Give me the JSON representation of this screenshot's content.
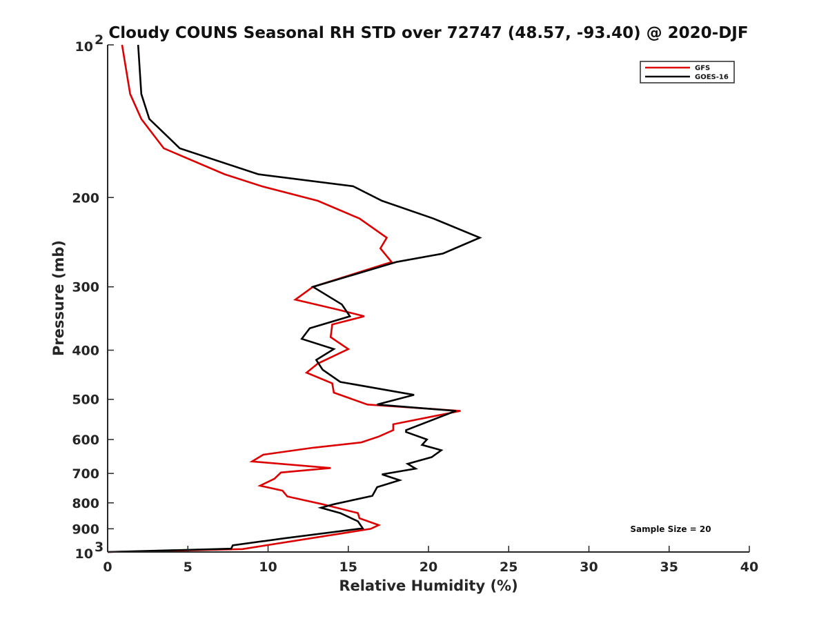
{
  "chart_data": {
    "type": "line",
    "title": "Cloudy COUNS Seasonal RH STD over 72747 (48.57, -93.40) @ 2020-DJF",
    "xlabel": "Relative Humidity (%)",
    "ylabel": "Pressure (mb)",
    "xlim": [
      0,
      40
    ],
    "ylim": [
      100,
      1000
    ],
    "yscale": "log",
    "yreversed": true,
    "x_ticks": [
      0,
      5,
      10,
      15,
      20,
      25,
      30,
      35,
      40
    ],
    "x_tick_labels": [
      "0",
      "5",
      "10",
      "15",
      "20",
      "25",
      "30",
      "35",
      "40"
    ],
    "y_ticks": [
      100,
      200,
      300,
      400,
      500,
      600,
      700,
      800,
      900,
      1000
    ],
    "y_tick_labels": [
      "",
      "200",
      "300",
      "400",
      "500",
      "600",
      "700",
      "800",
      "900",
      ""
    ],
    "y_end_labels": [
      {
        "value": 100,
        "base": "10",
        "exp": "2"
      },
      {
        "value": 1000,
        "base": "10",
        "exp": "3"
      }
    ],
    "grid": false,
    "legend_position": "top-right",
    "annotation": "Sample Size = 20",
    "series": [
      {
        "name": "GFS",
        "color": "#dd0000",
        "points": [
          [
            0.9,
            100
          ],
          [
            1.4,
            125
          ],
          [
            2.1,
            140
          ],
          [
            3.5,
            160
          ],
          [
            7.3,
            180
          ],
          [
            9.6,
            190
          ],
          [
            13.1,
            203
          ],
          [
            15.7,
            220
          ],
          [
            17.4,
            240
          ],
          [
            17.0,
            252
          ],
          [
            17.7,
            268
          ],
          [
            12.8,
            300
          ],
          [
            11.7,
            318
          ],
          [
            14.4,
            333
          ],
          [
            16.0,
            343
          ],
          [
            14.0,
            356
          ],
          [
            13.9,
            377
          ],
          [
            15.0,
            398
          ],
          [
            13.1,
            425
          ],
          [
            12.4,
            443
          ],
          [
            14.0,
            465
          ],
          [
            14.1,
            485
          ],
          [
            16.2,
            512
          ],
          [
            22.0,
            527
          ],
          [
            17.8,
            560
          ],
          [
            17.8,
            575
          ],
          [
            16.9,
            592
          ],
          [
            15.8,
            608
          ],
          [
            12.8,
            623
          ],
          [
            9.7,
            643
          ],
          [
            9.0,
            663
          ],
          [
            13.9,
            683
          ],
          [
            10.8,
            697
          ],
          [
            10.4,
            717
          ],
          [
            9.5,
            740
          ],
          [
            10.9,
            757
          ],
          [
            11.2,
            777
          ],
          [
            13.4,
            805
          ],
          [
            15.6,
            838
          ],
          [
            15.7,
            858
          ],
          [
            16.9,
            885
          ],
          [
            16.4,
            900
          ],
          [
            8.4,
            987
          ],
          [
            0.0,
            1000
          ]
        ]
      },
      {
        "name": "GOES-16",
        "color": "#000000",
        "points": [
          [
            1.9,
            100
          ],
          [
            2.1,
            125
          ],
          [
            2.6,
            140
          ],
          [
            4.5,
            160
          ],
          [
            9.4,
            180
          ],
          [
            15.3,
            190
          ],
          [
            17.1,
            203
          ],
          [
            20.3,
            220
          ],
          [
            23.2,
            240
          ],
          [
            20.9,
            258
          ],
          [
            18.0,
            268
          ],
          [
            12.8,
            300
          ],
          [
            14.6,
            325
          ],
          [
            15.1,
            343
          ],
          [
            12.6,
            362
          ],
          [
            12.1,
            380
          ],
          [
            14.1,
            398
          ],
          [
            13.0,
            418
          ],
          [
            13.4,
            437
          ],
          [
            14.5,
            462
          ],
          [
            19.1,
            490
          ],
          [
            16.8,
            512
          ],
          [
            21.7,
            527
          ],
          [
            18.6,
            575
          ],
          [
            18.6,
            580
          ],
          [
            19.9,
            600
          ],
          [
            19.6,
            615
          ],
          [
            20.8,
            630
          ],
          [
            20.2,
            650
          ],
          [
            18.7,
            670
          ],
          [
            19.2,
            685
          ],
          [
            17.1,
            703
          ],
          [
            18.2,
            722
          ],
          [
            16.8,
            745
          ],
          [
            16.5,
            775
          ],
          [
            14.1,
            805
          ],
          [
            13.3,
            818
          ],
          [
            14.5,
            838
          ],
          [
            15.6,
            870
          ],
          [
            15.9,
            898
          ],
          [
            11.0,
            940
          ],
          [
            7.8,
            970
          ],
          [
            7.7,
            985
          ],
          [
            0.0,
            1000
          ]
        ]
      }
    ]
  }
}
